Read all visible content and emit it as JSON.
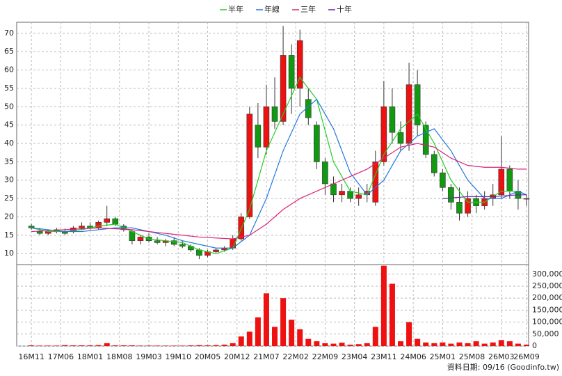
{
  "chart_data": {
    "type": "candlestick",
    "legend": [
      "半年",
      "年線",
      "三年",
      "十年"
    ],
    "footer": "資料日期: 09/16 (Goodinfo.tw)",
    "xlim": [
      -3.5,
      118.5
    ],
    "xticks": [
      {
        "value": 0,
        "label": "16M11"
      },
      {
        "value": 7,
        "label": "17M06"
      },
      {
        "value": 14,
        "label": "18M01"
      },
      {
        "value": 21,
        "label": "18M08"
      },
      {
        "value": 28,
        "label": "19M03"
      },
      {
        "value": 35,
        "label": "19M10"
      },
      {
        "value": 42,
        "label": "20M05"
      },
      {
        "value": 49,
        "label": "20M12"
      },
      {
        "value": 56,
        "label": "21M07"
      },
      {
        "value": 63,
        "label": "22M02"
      },
      {
        "value": 70,
        "label": "22M09"
      },
      {
        "value": 77,
        "label": "23M04"
      },
      {
        "value": 84,
        "label": "23M11"
      },
      {
        "value": 91,
        "label": "24M06"
      },
      {
        "value": 98,
        "label": "25M01"
      },
      {
        "value": 105,
        "label": "25M08"
      },
      {
        "value": 112,
        "label": "26M03"
      },
      {
        "value": 118,
        "label": "26M09"
      }
    ],
    "ylim": [
      7,
      73
    ],
    "yticks": [
      10,
      15,
      20,
      25,
      30,
      35,
      40,
      45,
      50,
      55,
      60,
      65,
      70
    ],
    "y2lim": [
      0,
      340000
    ],
    "y2ticks": [
      {
        "value": 0,
        "label": "0"
      },
      {
        "value": 50000,
        "label": "50,000"
      },
      {
        "value": 100000,
        "label": "100,000"
      },
      {
        "value": 150000,
        "label": "150,000"
      },
      {
        "value": 200000,
        "label": "200,000"
      },
      {
        "value": 250000,
        "label": "250,000"
      },
      {
        "value": 300000,
        "label": "300,000"
      }
    ],
    "grid": true,
    "up_color": "#ee1111",
    "down_color": "#119911",
    "volume_color": "#ee1111",
    "candles": {
      "x": [
        0,
        2,
        4,
        6,
        8,
        10,
        12,
        14,
        16,
        18,
        20,
        22,
        24,
        26,
        28,
        30,
        32,
        34,
        36,
        38,
        40,
        42,
        44,
        46,
        48,
        50,
        52,
        54,
        56,
        58,
        60,
        62,
        64,
        66,
        68,
        70,
        72,
        74,
        76,
        78,
        80,
        82,
        84,
        86,
        88,
        90,
        92,
        94,
        96,
        98,
        100,
        102,
        104,
        106,
        108,
        110,
        112,
        114,
        116,
        118
      ],
      "open": [
        17.5,
        16,
        15.5,
        16,
        16,
        16,
        17,
        17.5,
        17,
        18.5,
        19.5,
        17.5,
        16,
        13.5,
        14.5,
        13.5,
        13,
        13.5,
        12.5,
        12,
        11,
        9.5,
        10.5,
        11,
        11.5,
        14,
        20,
        45,
        39,
        50,
        46,
        64,
        55,
        52,
        45,
        35,
        29,
        26,
        27,
        25,
        26,
        24,
        35,
        50,
        43,
        40,
        56,
        45,
        37,
        32,
        28,
        24,
        21,
        25,
        23,
        25,
        26,
        33,
        27,
        25
      ],
      "high": [
        18,
        17,
        16.5,
        17,
        16.8,
        17.5,
        18.5,
        18.5,
        19,
        23,
        20,
        18,
        16.5,
        15,
        15.5,
        14.5,
        14,
        14.5,
        13.5,
        12.5,
        11.5,
        11,
        11.5,
        12,
        15,
        21,
        50,
        51,
        56,
        58,
        72,
        67,
        71,
        55,
        46,
        36,
        31,
        29,
        28,
        28,
        29,
        38,
        57,
        55,
        46,
        62,
        60,
        46,
        38,
        33,
        29,
        28,
        27,
        26,
        27,
        29,
        42,
        34,
        30,
        26
      ],
      "low": [
        16.5,
        15,
        15,
        15.5,
        15,
        15.5,
        16.5,
        16.5,
        16.5,
        17.5,
        17.5,
        16,
        12.5,
        12.5,
        13,
        12.5,
        12,
        12,
        11.5,
        10.5,
        8.5,
        9,
        10,
        10.5,
        11,
        13.5,
        19.5,
        36,
        37,
        44,
        45,
        48,
        50,
        45,
        33,
        26,
        24,
        24,
        24,
        23,
        24,
        23,
        34,
        40,
        38,
        38,
        42,
        36,
        31,
        27,
        22,
        19,
        20,
        21,
        22,
        23,
        25,
        25,
        22,
        23
      ],
      "close": [
        17,
        15.5,
        16,
        16.5,
        15.5,
        17,
        17.5,
        17,
        18.5,
        19.5,
        18,
        16.5,
        13.5,
        14.5,
        13.5,
        13,
        13.5,
        12.5,
        12,
        11,
        9.5,
        10.5,
        11,
        11.5,
        14,
        20,
        48,
        39,
        50,
        46,
        64,
        55,
        68,
        47,
        35,
        29,
        26,
        27,
        25,
        26,
        27,
        35,
        50,
        43,
        40,
        56,
        45,
        37,
        32,
        28,
        24,
        21,
        25,
        23,
        25,
        26,
        33,
        27,
        25,
        25
      ],
      "volume": [
        3000,
        2000,
        2000,
        2000,
        4000,
        3000,
        3000,
        3000,
        4000,
        12000,
        3000,
        3000,
        3000,
        2000,
        2000,
        2000,
        2000,
        2000,
        2000,
        3000,
        4000,
        3000,
        4000,
        6000,
        12000,
        40000,
        60000,
        120000,
        220000,
        80000,
        200000,
        110000,
        70000,
        30000,
        20000,
        12000,
        10000,
        14000,
        6000,
        8000,
        12000,
        80000,
        335000,
        260000,
        20000,
        100000,
        30000,
        15000,
        12000,
        15000,
        10000,
        15000,
        12000,
        20000,
        10000,
        15000,
        25000,
        20000,
        10000,
        6000
      ]
    },
    "series": [
      {
        "name": "半年",
        "color": "#22cc22",
        "x": [
          0,
          4,
          8,
          12,
          16,
          20,
          24,
          28,
          32,
          36,
          40,
          44,
          48,
          52,
          56,
          60,
          64,
          68,
          72,
          76,
          80,
          84,
          88,
          92,
          96,
          100,
          104,
          108,
          112,
          116,
          118
        ],
        "values": [
          17,
          16,
          16,
          16.5,
          17.5,
          18,
          16,
          14,
          13.5,
          13,
          11,
          10,
          11.5,
          22,
          38,
          48,
          58,
          52,
          35,
          27,
          26,
          37,
          44,
          48,
          40,
          30,
          24,
          24,
          27,
          27,
          26
        ]
      },
      {
        "name": "年線",
        "color": "#2277dd",
        "x": [
          0,
          4,
          8,
          12,
          16,
          20,
          24,
          28,
          32,
          36,
          40,
          44,
          48,
          52,
          56,
          60,
          64,
          68,
          72,
          76,
          80,
          84,
          88,
          92,
          96,
          100,
          104,
          108,
          112,
          116,
          118
        ],
        "values": [
          17,
          16.5,
          16,
          16,
          16.5,
          17,
          17,
          16,
          15,
          13.5,
          12.5,
          11.5,
          11.5,
          15,
          25,
          38,
          48,
          52,
          44,
          32,
          26,
          30,
          38,
          42,
          44,
          38,
          30,
          25,
          25,
          27,
          26
        ]
      },
      {
        "name": "三年",
        "color": "#dd2277",
        "x": [
          0,
          8,
          16,
          24,
          32,
          40,
          48,
          52,
          56,
          60,
          64,
          68,
          72,
          76,
          80,
          84,
          88,
          92,
          96,
          100,
          104,
          108,
          112,
          116,
          118
        ],
        "values": [
          16,
          16.5,
          17,
          16.5,
          15.5,
          14.5,
          14,
          15,
          18,
          22,
          25,
          27,
          29,
          31,
          33,
          36,
          39,
          40,
          39,
          36,
          34,
          33.5,
          33.5,
          33,
          33
        ]
      },
      {
        "name": "十年",
        "color": "#6622aa",
        "x": [
          98,
          104,
          110,
          116,
          118
        ],
        "values": [
          25,
          25.5,
          25.5,
          26,
          26
        ]
      }
    ]
  }
}
